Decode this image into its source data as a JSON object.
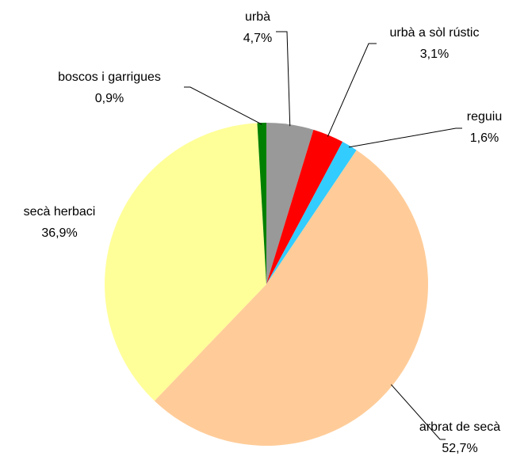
{
  "chart_data": {
    "type": "pie",
    "categories": [
      "urbà",
      "urbà a sòl rústic",
      "reguiu",
      "arbrat de secà",
      "secà herbaci",
      "boscos i garrigues"
    ],
    "values": [
      4.7,
      3.1,
      1.6,
      52.7,
      36.9,
      0.9
    ],
    "value_labels": [
      "4,7%",
      "3,1%",
      "1,6%",
      "52,7%",
      "36,9%",
      "0,9%"
    ],
    "colors": [
      "#999999",
      "#ff0000",
      "#33ccff",
      "#ffcc99",
      "#ffff99",
      "#008000"
    ]
  }
}
